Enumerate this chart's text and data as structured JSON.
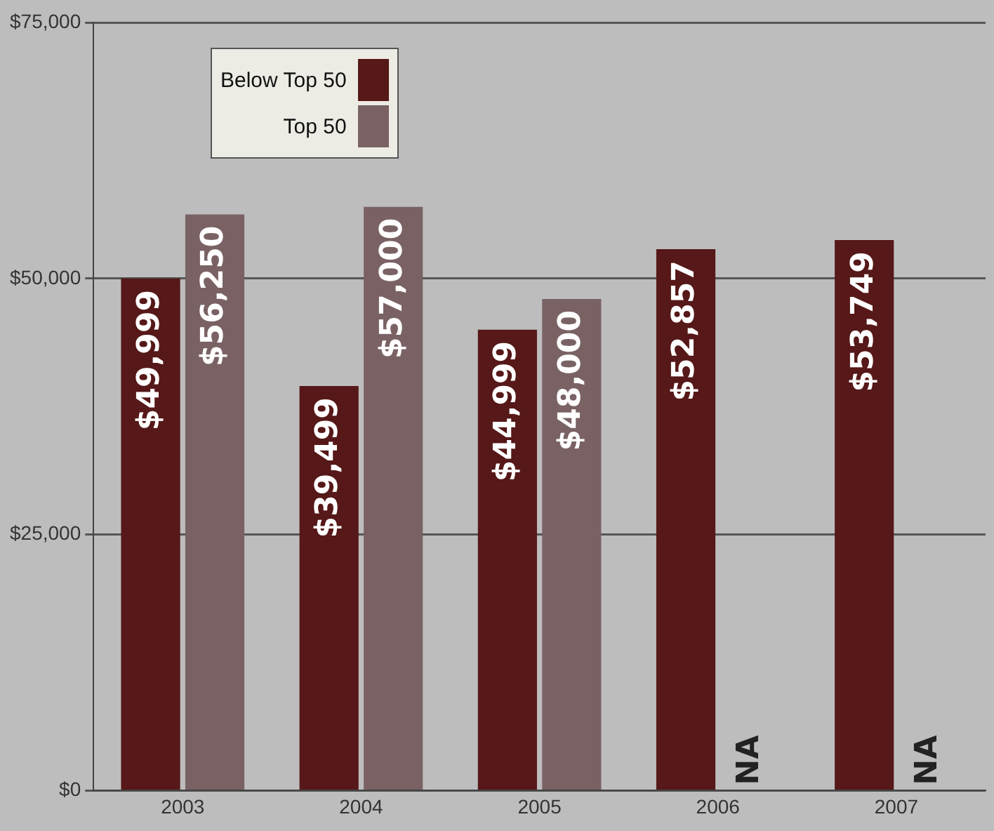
{
  "chart_data": {
    "type": "bar",
    "categories": [
      "2003",
      "2004",
      "2005",
      "2006",
      "2007"
    ],
    "series": [
      {
        "name": "Below Top 50",
        "color": "#561818",
        "values": [
          49999,
          39499,
          44999,
          52857,
          53749
        ],
        "value_labels": [
          "$49,999",
          "$39,499",
          "$44,999",
          "$52,857",
          "$53,749"
        ]
      },
      {
        "name": "Top 50",
        "color": "#7a6264",
        "values": [
          56250,
          57000,
          48000,
          null,
          null
        ],
        "value_labels": [
          "$56,250",
          "$57,000",
          "$48,000",
          "NA",
          "NA"
        ]
      }
    ],
    "ylim": [
      0,
      75000
    ],
    "yticks": [
      {
        "value": 0,
        "label": "$0"
      },
      {
        "value": 25000,
        "label": "$25,000"
      },
      {
        "value": 50000,
        "label": "$50,000"
      },
      {
        "value": 75000,
        "label": "$75,000"
      }
    ],
    "grid": "y",
    "legend": "top left"
  }
}
